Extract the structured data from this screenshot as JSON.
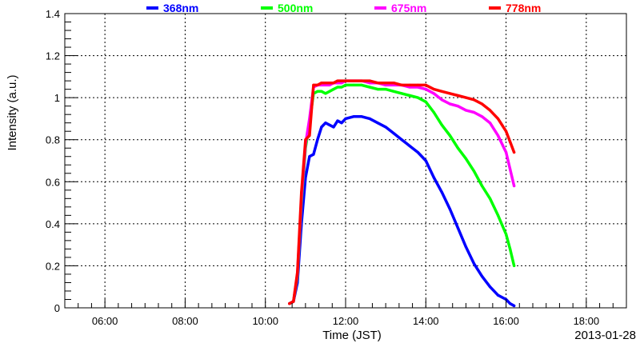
{
  "chart_data": {
    "type": "line",
    "xlabel": "Time (JST)",
    "ylabel": "Intensity (a.u.)",
    "date_label": "2013-01-28",
    "xlim": [
      "05:00",
      "19:00"
    ],
    "ylim": [
      0,
      1.4
    ],
    "x_ticks": [
      "06:00",
      "08:00",
      "10:00",
      "12:00",
      "14:00",
      "16:00",
      "18:00"
    ],
    "y_ticks": [
      "0",
      "0.2",
      "0.4",
      "0.6",
      "0.8",
      "1",
      "1.2",
      "1.4"
    ],
    "grid": true,
    "legend_position": "top",
    "series": [
      {
        "name": "368nm",
        "color": "#0000ff",
        "x": [
          "10:36",
          "10:42",
          "10:48",
          "10:54",
          "11:00",
          "11:06",
          "11:12",
          "11:18",
          "11:24",
          "11:30",
          "11:36",
          "11:42",
          "11:48",
          "11:54",
          "12:00",
          "12:12",
          "12:24",
          "12:36",
          "12:48",
          "13:00",
          "13:12",
          "13:24",
          "13:36",
          "13:48",
          "14:00",
          "14:12",
          "14:24",
          "14:36",
          "14:48",
          "15:00",
          "15:12",
          "15:24",
          "15:36",
          "15:48",
          "16:00",
          "16:06",
          "16:12"
        ],
        "y": [
          0.02,
          0.03,
          0.12,
          0.4,
          0.62,
          0.72,
          0.73,
          0.8,
          0.86,
          0.88,
          0.87,
          0.86,
          0.89,
          0.88,
          0.9,
          0.91,
          0.91,
          0.9,
          0.88,
          0.86,
          0.83,
          0.8,
          0.77,
          0.74,
          0.7,
          0.62,
          0.55,
          0.47,
          0.38,
          0.29,
          0.21,
          0.15,
          0.1,
          0.06,
          0.04,
          0.02,
          0.01
        ]
      },
      {
        "name": "500nm",
        "color": "#00ff00",
        "x": [
          "10:36",
          "10:42",
          "10:48",
          "10:54",
          "11:00",
          "11:06",
          "11:12",
          "11:18",
          "11:24",
          "11:30",
          "11:36",
          "11:42",
          "11:48",
          "11:54",
          "12:00",
          "12:12",
          "12:24",
          "12:36",
          "12:48",
          "13:00",
          "13:12",
          "13:24",
          "13:36",
          "13:48",
          "14:00",
          "14:12",
          "14:24",
          "14:36",
          "14:48",
          "15:00",
          "15:12",
          "15:24",
          "15:36",
          "15:48",
          "16:00",
          "16:06",
          "16:12"
        ],
        "y": [
          0.02,
          0.03,
          0.15,
          0.5,
          0.76,
          0.88,
          1.02,
          1.03,
          1.03,
          1.02,
          1.03,
          1.04,
          1.05,
          1.05,
          1.06,
          1.06,
          1.06,
          1.05,
          1.04,
          1.04,
          1.03,
          1.02,
          1.01,
          1.0,
          0.98,
          0.93,
          0.87,
          0.82,
          0.76,
          0.71,
          0.65,
          0.58,
          0.52,
          0.44,
          0.35,
          0.28,
          0.2
        ]
      },
      {
        "name": "675nm",
        "color": "#ff00ff",
        "x": [
          "10:36",
          "10:42",
          "10:48",
          "10:54",
          "11:00",
          "11:06",
          "11:12",
          "11:18",
          "11:24",
          "11:30",
          "11:36",
          "11:42",
          "11:48",
          "11:54",
          "12:00",
          "12:12",
          "12:24",
          "12:36",
          "12:48",
          "13:00",
          "13:12",
          "13:24",
          "13:36",
          "13:48",
          "14:00",
          "14:12",
          "14:24",
          "14:36",
          "14:48",
          "15:00",
          "15:12",
          "15:24",
          "15:36",
          "15:48",
          "16:00",
          "16:06",
          "16:12"
        ],
        "y": [
          0.02,
          0.03,
          0.16,
          0.52,
          0.78,
          0.9,
          1.05,
          1.06,
          1.06,
          1.06,
          1.06,
          1.07,
          1.07,
          1.07,
          1.08,
          1.08,
          1.08,
          1.07,
          1.07,
          1.06,
          1.06,
          1.06,
          1.05,
          1.05,
          1.04,
          1.02,
          0.99,
          0.97,
          0.96,
          0.94,
          0.93,
          0.91,
          0.88,
          0.82,
          0.74,
          0.66,
          0.58
        ]
      },
      {
        "name": "778nm",
        "color": "#ff0000",
        "x": [
          "10:36",
          "10:42",
          "10:48",
          "10:54",
          "11:00",
          "11:06",
          "11:12",
          "11:18",
          "11:24",
          "11:30",
          "11:36",
          "11:42",
          "11:48",
          "11:54",
          "12:00",
          "12:12",
          "12:24",
          "12:36",
          "12:48",
          "13:00",
          "13:12",
          "13:24",
          "13:36",
          "13:48",
          "14:00",
          "14:12",
          "14:24",
          "14:36",
          "14:48",
          "15:00",
          "15:12",
          "15:24",
          "15:36",
          "15:48",
          "16:00",
          "16:06",
          "16:12"
        ],
        "y": [
          0.02,
          0.03,
          0.17,
          0.55,
          0.8,
          0.82,
          1.06,
          1.06,
          1.07,
          1.07,
          1.07,
          1.07,
          1.08,
          1.08,
          1.08,
          1.08,
          1.08,
          1.08,
          1.07,
          1.07,
          1.07,
          1.06,
          1.06,
          1.06,
          1.06,
          1.04,
          1.03,
          1.02,
          1.01,
          1.0,
          0.99,
          0.97,
          0.94,
          0.9,
          0.84,
          0.79,
          0.74
        ]
      }
    ]
  }
}
